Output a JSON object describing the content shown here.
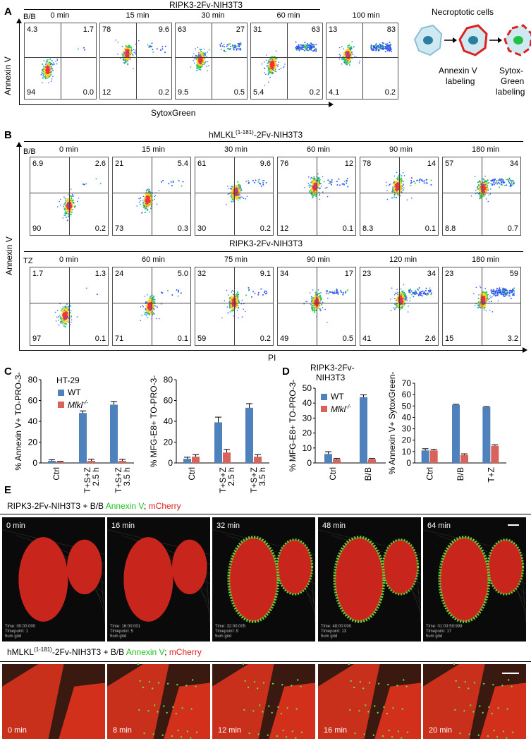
{
  "panelA": {
    "label": "A",
    "title": "RIPK3-2Fv-NIH3T3",
    "treatment": "B/B",
    "ylabel": "Annexin V",
    "xlabel": "SytoxGreen",
    "plots": [
      {
        "time": "0 min",
        "ul": "4.3",
        "ur": "1.7",
        "ll": "94",
        "lr": "0.0"
      },
      {
        "time": "15 min",
        "ul": "78",
        "ur": "9.6",
        "ll": "12",
        "lr": "0.2"
      },
      {
        "time": "30 min",
        "ul": "63",
        "ur": "27",
        "ll": "9.5",
        "lr": "0.5"
      },
      {
        "time": "60 min",
        "ul": "31",
        "ur": "63",
        "ll": "5.4",
        "lr": "0.2"
      },
      {
        "time": "100 min",
        "ul": "13",
        "ur": "83",
        "ll": "4.1",
        "lr": "0.2"
      }
    ],
    "schematic": {
      "title": "Necroptotic cells",
      "label1": "Annexin V",
      "label1b": "labeling",
      "label2": "Sytox-",
      "label2b": "Green",
      "label2c": "labeling"
    }
  },
  "panelB": {
    "label": "B",
    "title1": "hMLKL",
    "title1sup": "(1-181)",
    "title1rest": "-2Fv-NIH3T3",
    "treatment1": "B/B",
    "row1": [
      {
        "time": "0 min",
        "ul": "6.9",
        "ur": "2.6",
        "ll": "90",
        "lr": "0.2"
      },
      {
        "time": "15 min",
        "ul": "21",
        "ur": "5.4",
        "ll": "73",
        "lr": "0.3"
      },
      {
        "time": "30 min",
        "ul": "61",
        "ur": "9.6",
        "ll": "30",
        "lr": "0.2"
      },
      {
        "time": "60 min",
        "ul": "76",
        "ur": "12",
        "ll": "12",
        "lr": "0.1"
      },
      {
        "time": "90 min",
        "ul": "78",
        "ur": "14",
        "ll": "8.3",
        "lr": "0.1"
      },
      {
        "time": "180 min",
        "ul": "57",
        "ur": "34",
        "ll": "8.8",
        "lr": "0.7"
      }
    ],
    "title2": "RIPK3-2Fv-NIH3T3",
    "treatment2": "TZ",
    "row2": [
      {
        "time": "0 min",
        "ul": "1.7",
        "ur": "1.3",
        "ll": "97",
        "lr": "0.1"
      },
      {
        "time": "60 min",
        "ul": "24",
        "ur": "5.0",
        "ll": "71",
        "lr": "0.1"
      },
      {
        "time": "75 min",
        "ul": "32",
        "ur": "9.1",
        "ll": "59",
        "lr": "0.2"
      },
      {
        "time": "90 min",
        "ul": "34",
        "ur": "17",
        "ll": "49",
        "lr": "0.5"
      },
      {
        "time": "120 min",
        "ul": "23",
        "ur": "34",
        "ll": "41",
        "lr": "2.6"
      },
      {
        "time": "180 min",
        "ul": "23",
        "ur": "59",
        "ll": "15",
        "lr": "3.2"
      }
    ],
    "ylabel": "Annexin V",
    "xlabel": "PI"
  },
  "panelC": {
    "label": "C",
    "cell": "HT-29"
  },
  "panelD": {
    "label": "D",
    "cell1": "RIPK3-2Fv-",
    "cell2": "NIH3T3"
  },
  "colors": {
    "wt": "#4f81bd",
    "ko": "#d9625a"
  },
  "chart_data": [
    {
      "type": "bar",
      "title": "",
      "ylabel": "% Annexin V+ TO-PRO-3-",
      "ylim": [
        0,
        80
      ],
      "yticks": [
        0,
        20,
        40,
        60,
        80
      ],
      "categories": [
        "Ctrl",
        "T+S+Z 2.5 h",
        "T+S+Z 3.5 h"
      ],
      "series": [
        {
          "name": "WT",
          "values": [
            2,
            48,
            56
          ],
          "errors": [
            1,
            2,
            3
          ]
        },
        {
          "name": "Mlkl-/-",
          "values": [
            1,
            2,
            2
          ],
          "errors": [
            0.5,
            1.5,
            1.5
          ]
        }
      ]
    },
    {
      "type": "bar",
      "title": "",
      "ylabel": "% MFG-E8+ TO-PRO-3-",
      "ylim": [
        0,
        80
      ],
      "yticks": [
        0,
        20,
        40,
        60,
        80
      ],
      "categories": [
        "Ctrl",
        "T+S+Z 2.5 h",
        "T+S+Z 3.5 h"
      ],
      "series": [
        {
          "name": "WT",
          "values": [
            4,
            39,
            53
          ],
          "errors": [
            1.5,
            5,
            4
          ]
        },
        {
          "name": "Mlkl-/-",
          "values": [
            6,
            10,
            6
          ],
          "errors": [
            2,
            3,
            2
          ]
        }
      ]
    },
    {
      "type": "bar",
      "title": "",
      "ylabel": "% MFG-E8+ TO-PRO-3-",
      "ylim": [
        0,
        50
      ],
      "yticks": [
        0,
        10,
        20,
        30,
        40,
        50
      ],
      "categories": [
        "Ctrl",
        "B/B"
      ],
      "series": [
        {
          "name": "WT",
          "values": [
            6,
            44
          ],
          "errors": [
            1.5,
            1.5
          ]
        },
        {
          "name": "Mlkl-/-",
          "values": [
            2.5,
            2.5
          ],
          "errors": [
            0.5,
            0.5
          ]
        }
      ]
    },
    {
      "type": "bar",
      "title": "",
      "ylabel": "% Annexin V+ SytoxGreen-",
      "ylim": [
        0,
        70
      ],
      "yticks": [
        0,
        10,
        20,
        30,
        40,
        50,
        60,
        70
      ],
      "categories": [
        "Ctrl",
        "B/B",
        "T+Z"
      ],
      "series": [
        {
          "name": "WT",
          "values": [
            11,
            51,
            49
          ],
          "errors": [
            1.5,
            0.5,
            0.5
          ]
        },
        {
          "name": "Mlkl-/-",
          "values": [
            11,
            7,
            15
          ],
          "errors": [
            1,
            1,
            1
          ]
        }
      ]
    }
  ],
  "legend": {
    "wt": "WT",
    "ko": "Mlkl",
    "ko_sup": "-/-"
  },
  "panelE": {
    "label": "E",
    "title1": "RIPK3-2Fv-NIH3T3 + B/B",
    "stain_green": "Annexin V",
    "stain_sep": ";",
    "stain_red": "mCherry",
    "row1": [
      {
        "time": "0 min",
        "meta1": "Time: 00:00:000",
        "meta2": "Timepoint: 1",
        "meta3": "5um grid"
      },
      {
        "time": "16 min",
        "meta1": "Time: 16:00:001",
        "meta2": "Timepoint: 5",
        "meta3": "5um grid"
      },
      {
        "time": "32 min",
        "meta1": "Time: 32:00:005",
        "meta2": "Timepoint: 9",
        "meta3": "5um grid"
      },
      {
        "time": "48 min",
        "meta1": "Time: 48:00:000",
        "meta2": "Timepoint: 13",
        "meta3": "5um grid"
      },
      {
        "time": "64 min",
        "meta1": "Time: 01:03:59:999",
        "meta2": "Timepoint: 17",
        "meta3": "5um grid"
      }
    ],
    "title2a": "hMLKL",
    "title2sup": "(1-181)",
    "title2b": "-2Fv-NIH3T3 + B/B",
    "row2": [
      {
        "time": "0 min"
      },
      {
        "time": "8 min"
      },
      {
        "time": "12 min"
      },
      {
        "time": "16 min"
      },
      {
        "time": "20 min"
      }
    ]
  }
}
